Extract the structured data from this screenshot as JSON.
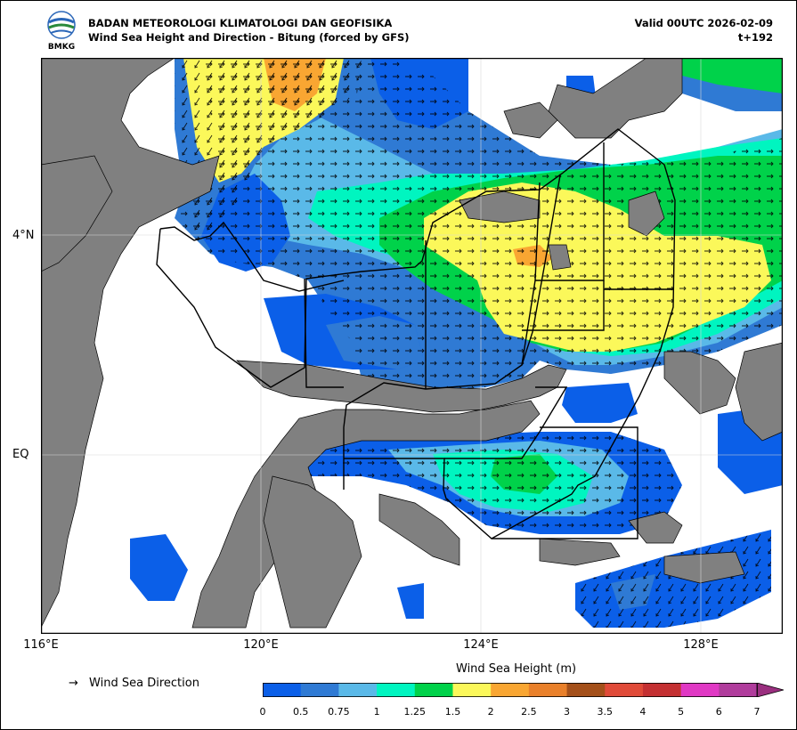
{
  "header": {
    "agency": "BADAN METEOROLOGI KLIMATOLOGI DAN GEOFISIKA",
    "subtitle": "Wind Sea Height and Direction - Bitung (forced by GFS)",
    "valid": "Valid 00UTC 2026-02-09",
    "lead": "t+192",
    "logo_text": "BMKG"
  },
  "axes": {
    "lat_labels": [
      "4°N",
      "EQ"
    ],
    "lon_labels": [
      "116°E",
      "120°E",
      "124°E",
      "128°E"
    ]
  },
  "legend": {
    "direction_label": "Wind Sea Direction",
    "arrow_glyph": "→",
    "colorbar_title": "Wind Sea Height (m)",
    "levels": [
      "0",
      "0.5",
      "0.75",
      "1",
      "1.25",
      "1.5",
      "2",
      "2.5",
      "3",
      "3.5",
      "4",
      "5",
      "6",
      "7"
    ],
    "colors": [
      "#0b5fe8",
      "#2f7ad4",
      "#5ab9e8",
      "#00f5c0",
      "#00d24a",
      "#fbf85a",
      "#f9a632",
      "#e9802a",
      "#a4501a",
      "#e04a38",
      "#c43032",
      "#e038c4",
      "#b03c9c",
      "#9a2f7f"
    ]
  },
  "colors": {
    "land": "#808080",
    "sea_background": "#ffffff",
    "boundary": "#000000"
  }
}
